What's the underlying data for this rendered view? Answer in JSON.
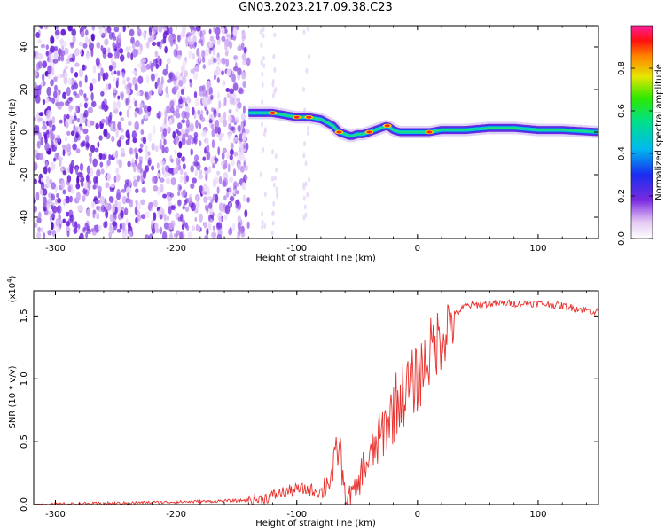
{
  "title": "GN03.2023.217.09.38.C23",
  "colors": {
    "axis": "#000000",
    "snr_line": "#e8302c",
    "scatter_dark": "#6a1fd8",
    "scatter_light": "#e6d8f7"
  },
  "chart_data": [
    {
      "type": "heatmap",
      "xlabel": "Height of straight line (km)",
      "ylabel": "Frequency (Hz)",
      "xlim": [
        -318,
        150
      ],
      "ylim": [
        -50,
        50
      ],
      "x_ticks": [
        -300,
        -200,
        -100,
        0,
        100
      ],
      "y_ticks": [
        40,
        20,
        0,
        -20,
        -40
      ],
      "colorbar": {
        "label": "Normalized spectral amplitude",
        "range": [
          0.0,
          1.0
        ],
        "ticks": [
          "0.0",
          "0.2",
          "0.4",
          "0.6",
          "0.8"
        ],
        "colormap": "rainbow (white-purple-blue-cyan-green-yellow-red-magenta)"
      },
      "noise_region_x": [
        -318,
        -140
      ],
      "signal_track": {
        "x": [
          -140,
          -130,
          -120,
          -110,
          -100,
          -90,
          -80,
          -70,
          -65,
          -60,
          -55,
          -50,
          -45,
          -40,
          -35,
          -30,
          -25,
          -20,
          -15,
          -10,
          0,
          10,
          20,
          40,
          60,
          80,
          100,
          120,
          150
        ],
        "y": [
          9,
          9,
          9,
          8,
          7,
          7,
          6,
          3,
          0,
          -1,
          -2,
          -1,
          -1,
          0,
          1,
          2,
          3,
          1,
          0,
          0,
          0,
          0,
          1,
          1,
          2,
          2,
          1,
          1,
          0
        ]
      },
      "peak_amplitude_x": [
        -120,
        -100,
        -90,
        -65,
        -40,
        -25,
        10
      ],
      "grid": false,
      "legend": "colorbar-right"
    },
    {
      "type": "line",
      "xlabel": "Height of straight line (km)",
      "ylabel": "SNR (10 * v/v)",
      "y_multiplier": "(x10",
      "y_multiplier_exp": "4",
      "y_multiplier_close": ")",
      "xlim": [
        -318,
        150
      ],
      "ylim": [
        0.0,
        1.7
      ],
      "x_ticks": [
        -300,
        -200,
        -100,
        0,
        100
      ],
      "y_ticks": [
        "0.0",
        "0.5",
        "1.0",
        "1.5"
      ],
      "series": [
        {
          "x": [
            -318,
            -250,
            -200,
            -150,
            -130,
            -110,
            -100,
            -90,
            -80,
            -70,
            -65,
            -60,
            -55,
            -50,
            -45,
            -40,
            -35,
            -30,
            -25,
            -20,
            -15,
            -10,
            -5,
            0,
            10,
            20,
            30,
            40,
            60,
            80,
            100,
            120,
            150
          ],
          "y": [
            0.0,
            0.01,
            0.02,
            0.03,
            0.04,
            0.1,
            0.12,
            0.12,
            0.1,
            0.25,
            0.5,
            0.05,
            0.08,
            0.12,
            0.3,
            0.35,
            0.45,
            0.55,
            0.65,
            0.75,
            0.85,
            0.9,
            0.95,
            1.0,
            1.2,
            1.35,
            1.5,
            1.58,
            1.6,
            1.6,
            1.6,
            1.58,
            1.53
          ]
        }
      ],
      "grid": false
    }
  ]
}
